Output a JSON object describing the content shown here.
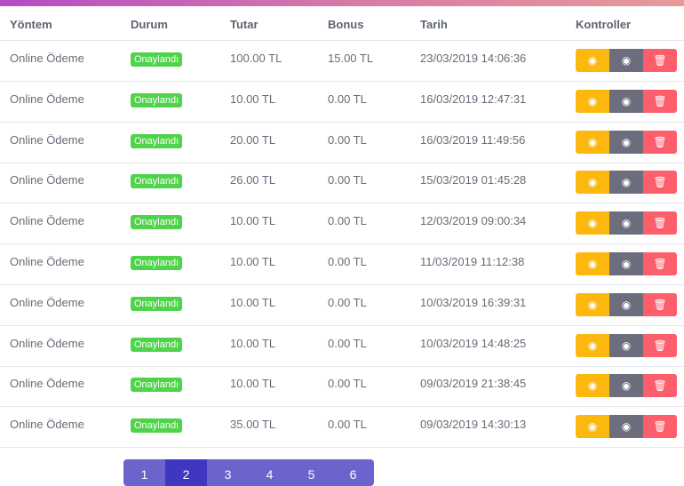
{
  "headers": [
    "Yöntem",
    "Durum",
    "Tutar",
    "Bonus",
    "Tarih",
    "Kontroller"
  ],
  "rows": [
    {
      "method": "Online Ödeme",
      "status": "Onaylandı",
      "amount": "100.00 TL",
      "bonus": "15.00 TL",
      "date": "23/03/2019 14:06:36"
    },
    {
      "method": "Online Ödeme",
      "status": "Onaylandı",
      "amount": "10.00 TL",
      "bonus": "0.00 TL",
      "date": "16/03/2019 12:47:31"
    },
    {
      "method": "Online Ödeme",
      "status": "Onaylandı",
      "amount": "20.00 TL",
      "bonus": "0.00 TL",
      "date": "16/03/2019 11:49:56"
    },
    {
      "method": "Online Ödeme",
      "status": "Onaylandı",
      "amount": "26.00 TL",
      "bonus": "0.00 TL",
      "date": "15/03/2019 01:45:28"
    },
    {
      "method": "Online Ödeme",
      "status": "Onaylandı",
      "amount": "10.00 TL",
      "bonus": "0.00 TL",
      "date": "12/03/2019 09:00:34"
    },
    {
      "method": "Online Ödeme",
      "status": "Onaylandı",
      "amount": "10.00 TL",
      "bonus": "0.00 TL",
      "date": "11/03/2019 11:12:38"
    },
    {
      "method": "Online Ödeme",
      "status": "Onaylandı",
      "amount": "10.00 TL",
      "bonus": "0.00 TL",
      "date": "10/03/2019 16:39:31"
    },
    {
      "method": "Online Ödeme",
      "status": "Onaylandı",
      "amount": "10.00 TL",
      "bonus": "0.00 TL",
      "date": "10/03/2019 14:48:25"
    },
    {
      "method": "Online Ödeme",
      "status": "Onaylandı",
      "amount": "10.00 TL",
      "bonus": "0.00 TL",
      "date": "09/03/2019 21:38:45"
    },
    {
      "method": "Online Ödeme",
      "status": "Onaylandı",
      "amount": "35.00 TL",
      "bonus": "0.00 TL",
      "date": "09/03/2019 14:30:13"
    }
  ],
  "controls": {
    "icons": [
      "eye-icon",
      "eye-icon",
      "trash-icon"
    ],
    "colors": [
      "#fdb810",
      "#6c6e7e",
      "#fc5e6b"
    ]
  },
  "pagination": {
    "pages": [
      "1",
      "2",
      "3",
      "4",
      "5",
      "6"
    ],
    "active": "2"
  }
}
